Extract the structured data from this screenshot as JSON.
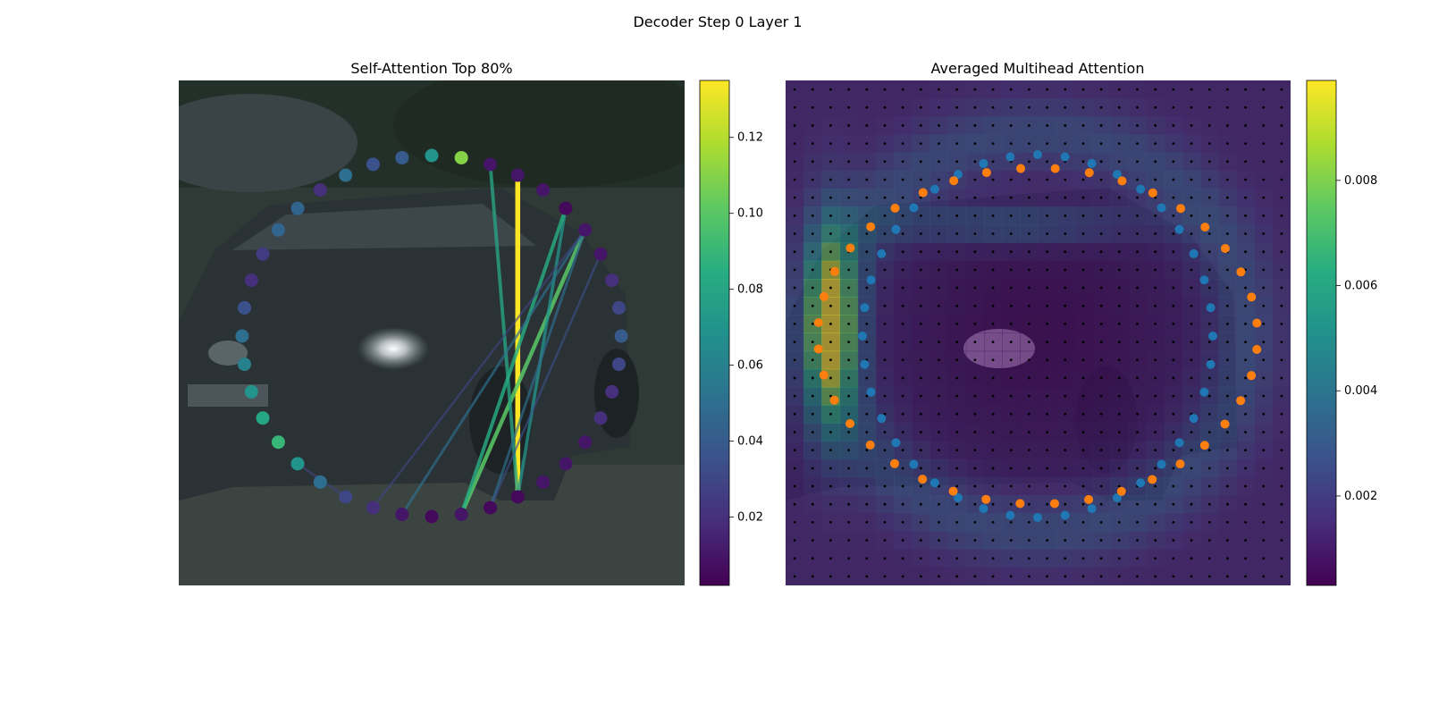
{
  "figure": {
    "suptitle": "Decoder Step 0 Layer 1"
  },
  "colors": {
    "background": "#ffffff",
    "viridis": [
      "#440154",
      "#472d7b",
      "#3b528b",
      "#2c728e",
      "#21918c",
      "#28ae80",
      "#5ec962",
      "#addc30",
      "#fde725"
    ],
    "query_points": "#1f77b4",
    "reference_points": "#ff7f0e",
    "grid_dots": "#000000"
  },
  "chart_data": [
    {
      "type": "scatter",
      "title": "Self-Attention Top 80%",
      "background_image": "photo-of-dark-car-on-street",
      "points_in_ring": 40,
      "point_colorbar": {
        "range": [
          0.002,
          0.135
        ],
        "ticks": [
          "0.02",
          "0.04",
          "0.06",
          "0.08",
          "0.10",
          "0.12"
        ],
        "tick_values": [
          0.02,
          0.04,
          0.06,
          0.08,
          0.1,
          0.12
        ]
      },
      "point_weights": [
        0.07,
        0.11,
        0.01,
        0.01,
        0.01,
        0.005,
        0.01,
        0.01,
        0.02,
        0.03,
        0.04,
        0.03,
        0.02,
        0.02,
        0.01,
        0.01,
        0.01,
        0.005,
        0.005,
        0.01,
        0.005,
        0.01,
        0.02,
        0.03,
        0.05,
        0.07,
        0.09,
        0.08,
        0.07,
        0.06,
        0.05,
        0.035,
        0.02,
        0.025,
        0.045,
        0.045,
        0.02,
        0.05,
        0.035,
        0.04
      ],
      "edges": [
        {
          "from": 17,
          "to": 3,
          "weight": 0.135
        },
        {
          "from": 19,
          "to": 6,
          "weight": 0.1
        },
        {
          "from": 17,
          "to": 2,
          "weight": 0.08
        },
        {
          "from": 17,
          "to": 5,
          "weight": 0.07
        },
        {
          "from": 19,
          "to": 5,
          "weight": 0.085
        },
        {
          "from": 18,
          "to": 6,
          "weight": 0.05
        },
        {
          "from": 21,
          "to": 6,
          "weight": 0.05
        },
        {
          "from": 22,
          "to": 6,
          "weight": 0.03
        },
        {
          "from": 25,
          "to": 23,
          "weight": 0.03
        },
        {
          "from": 18,
          "to": 7,
          "weight": 0.035
        }
      ]
    },
    {
      "type": "heatmap",
      "title": "Averaged Multihead Attention",
      "background_image": "photo-of-dark-car-on-street",
      "grid_size": [
        28,
        28
      ],
      "colorbar": {
        "range": [
          0.0003,
          0.0099
        ],
        "ticks": [
          "0.002",
          "0.004",
          "0.006",
          "0.008"
        ],
        "tick_values": [
          0.002,
          0.004,
          0.006,
          0.008
        ]
      },
      "scatter_series": [
        {
          "name": "",
          "color": "#1f77b4",
          "count": 40,
          "note_kind": "inner-ring"
        },
        {
          "name": "",
          "color": "#ff7f0e",
          "count": 40,
          "note_kind": "outer-ring"
        }
      ]
    }
  ]
}
